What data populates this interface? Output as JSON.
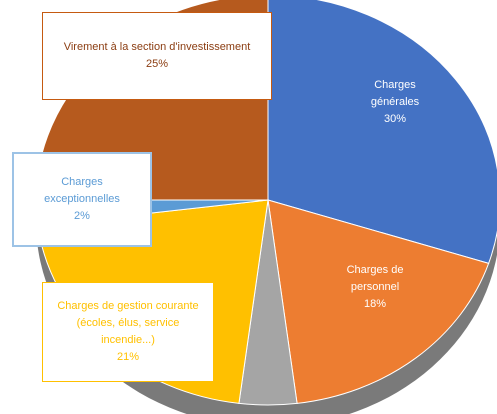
{
  "chart_data": {
    "type": "pie",
    "categories": [
      "Charges générales",
      "Charges de personnel",
      null,
      "Charges de gestion courante (écoles, élus, service incendie...)",
      "Charges exceptionnelles",
      "Virement à la section d'investissement"
    ],
    "values": [
      30,
      18,
      4,
      21,
      2,
      25
    ],
    "value_labels": [
      "30%",
      "18%",
      null,
      "21%",
      "2%",
      "25%"
    ],
    "colors": [
      "#4472c4",
      "#ed7d31",
      "#a5a5a5",
      "#ffc000",
      "#5b9bd5",
      "#b65a1e"
    ]
  }
}
